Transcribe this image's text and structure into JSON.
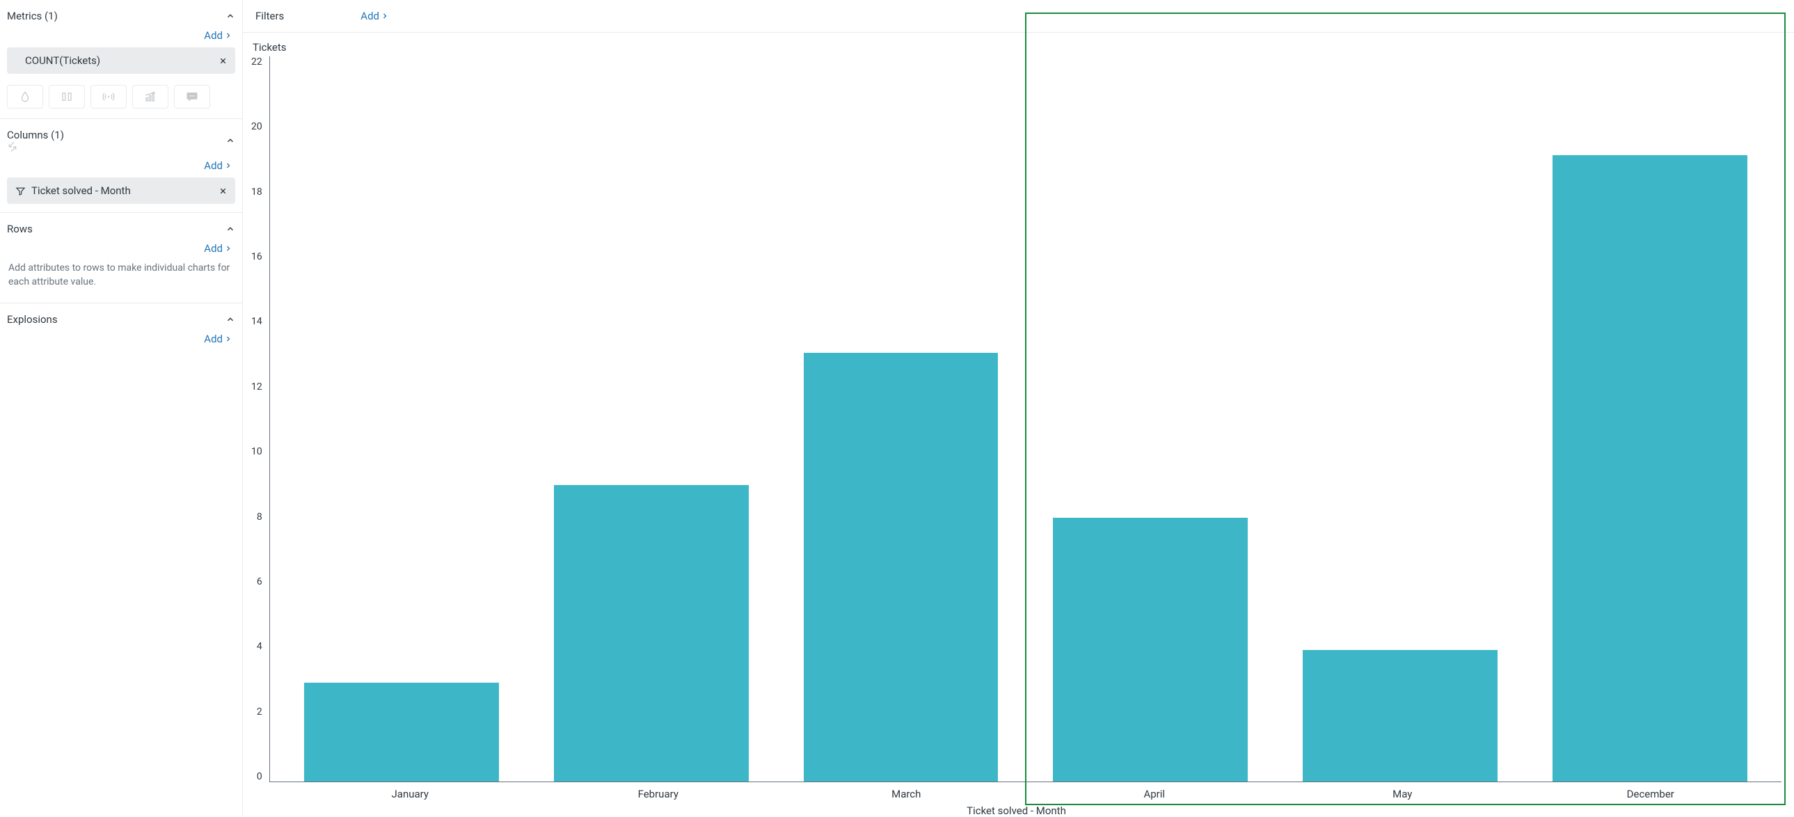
{
  "sidebar": {
    "metrics": {
      "title": "Metrics (1)",
      "add_label": "Add",
      "items": [
        {
          "label": "COUNT(Tickets)"
        }
      ]
    },
    "columns": {
      "title": "Columns (1)",
      "add_label": "Add",
      "items": [
        {
          "label": "Ticket solved - Month"
        }
      ]
    },
    "rows": {
      "title": "Rows",
      "add_label": "Add",
      "helper": "Add attributes to rows to make individual charts for each attribute value."
    },
    "explosions": {
      "title": "Explosions",
      "add_label": "Add"
    }
  },
  "filter_bar": {
    "label": "Filters",
    "add_label": "Add"
  },
  "chart": {
    "type": "bar",
    "y_title": "Tickets",
    "x_title": "Ticket solved - Month",
    "ylim": [
      0,
      22
    ],
    "ytick_step": 2,
    "yticks": [
      "22",
      "20",
      "18",
      "16",
      "14",
      "12",
      "10",
      "8",
      "6",
      "4",
      "2",
      "0"
    ],
    "categories": [
      "January",
      "February",
      "March",
      "April",
      "May",
      "December"
    ],
    "values": [
      3,
      9,
      13,
      8,
      4,
      19
    ],
    "bar_color": "#3db7c7",
    "axis_color": "#68737d",
    "text_color": "#2f3941",
    "highlight": {
      "start_index": 3,
      "end_index": 5,
      "border_color": "#1a8a3f"
    }
  }
}
